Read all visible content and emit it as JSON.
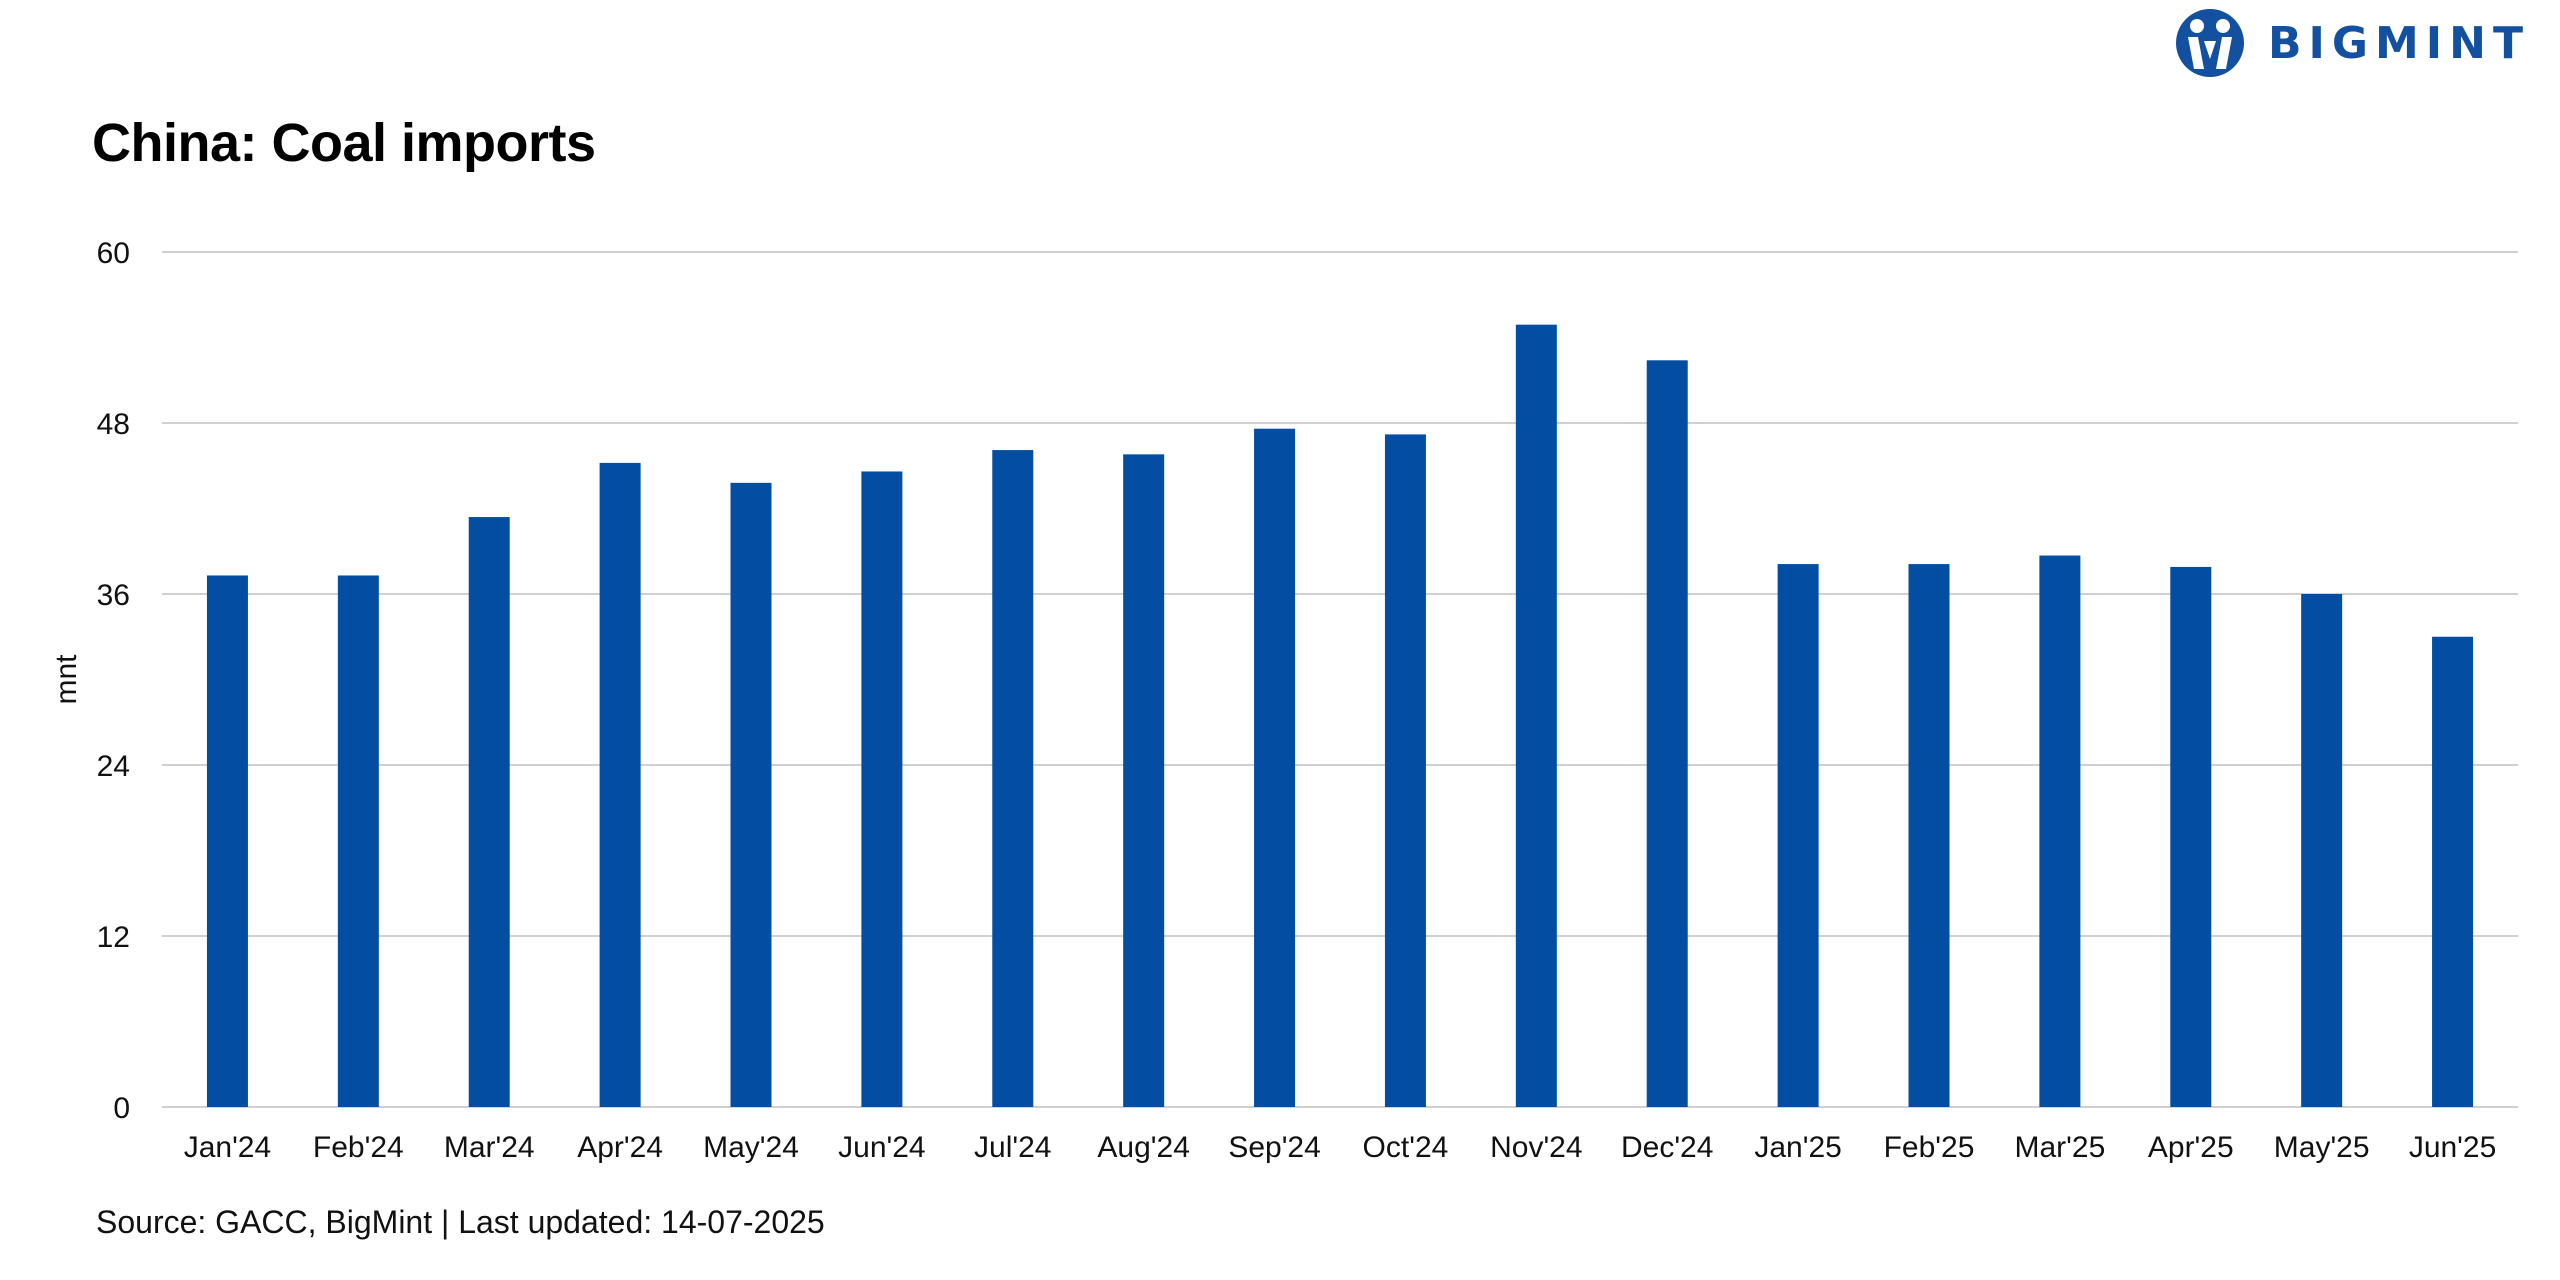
{
  "header": {
    "title": "China: Coal imports",
    "brand": "BIGMINT"
  },
  "colors": {
    "bar": "#034ea2",
    "grid": "#d0d0d0",
    "brand": "#1450a0"
  },
  "chart_data": {
    "type": "bar",
    "title": "China: Coal imports",
    "xlabel": "",
    "ylabel": "mnt",
    "ylim": [
      0,
      60
    ],
    "yticks": [
      0,
      12,
      24,
      36,
      48,
      60
    ],
    "grid": true,
    "categories": [
      "Jan'24",
      "Feb'24",
      "Mar'24",
      "Apr'24",
      "May'24",
      "Jun'24",
      "Jul'24",
      "Aug'24",
      "Sep'24",
      "Oct'24",
      "Nov'24",
      "Dec'24",
      "Jan'25",
      "Feb'25",
      "Mar'25",
      "Apr'25",
      "May'25",
      "Jun'25"
    ],
    "series": [
      {
        "name": "Coal imports",
        "values": [
          37.3,
          37.3,
          41.4,
          45.2,
          43.8,
          44.6,
          46.1,
          45.8,
          47.6,
          47.2,
          54.9,
          52.4,
          38.1,
          38.1,
          38.7,
          37.9,
          36.0,
          33.0
        ]
      }
    ]
  },
  "footer": {
    "source": "Source: GACC, BigMint | Last updated: 14-07-2025"
  }
}
